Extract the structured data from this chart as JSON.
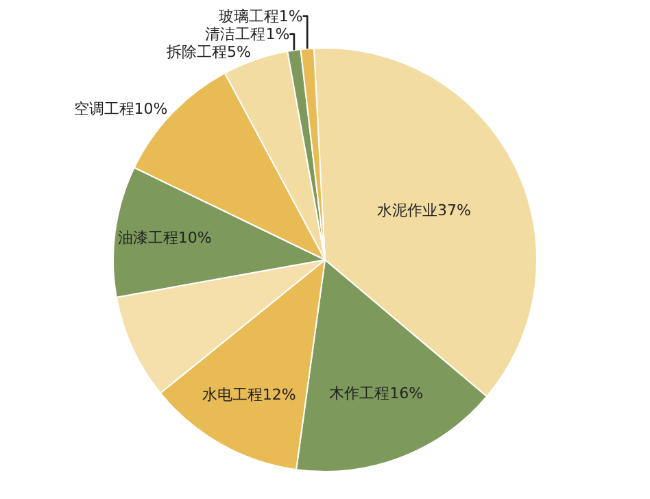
{
  "chart_data": {
    "type": "pie",
    "categories": [
      "水泥作业",
      "木作工程",
      "水电工程",
      null,
      "油漆工程",
      "空调工程",
      "拆除工程",
      "清洁工程",
      "玻璃工程"
    ],
    "values": [
      37,
      16,
      12,
      8,
      10,
      10,
      5,
      1,
      1
    ],
    "value_labels": [
      "37%",
      "16%",
      "12%",
      null,
      "10%",
      "10%",
      "5%",
      "1%",
      "1%"
    ],
    "colors": [
      "#f3dca2",
      "#7d9a5c",
      "#e8bb55",
      "#f5e0ab",
      "#7d9a5c",
      "#e8bb55",
      "#f3dca2",
      "#7d9a5c",
      "#e8bb55"
    ],
    "legend": false
  }
}
